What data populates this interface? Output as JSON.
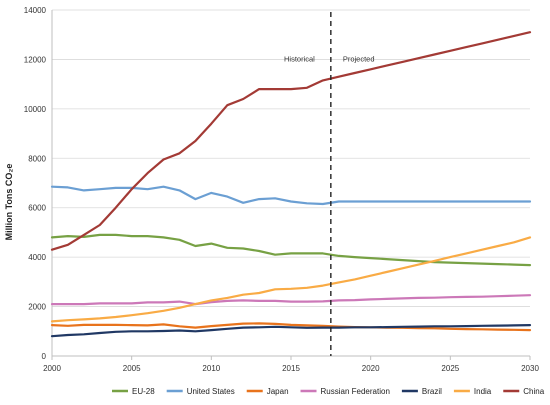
{
  "chart_data": {
    "type": "line",
    "title": "",
    "xlabel": "",
    "ylabel": "Million Tons CO₂e",
    "xlim": [
      2000,
      2030
    ],
    "ylim": [
      0,
      14000
    ],
    "x_ticks": [
      2000,
      2005,
      2010,
      2015,
      2020,
      2025,
      2030
    ],
    "y_ticks": [
      0,
      2000,
      4000,
      6000,
      8000,
      10000,
      12000,
      14000
    ],
    "y_tick_labels": [
      "0",
      "2000",
      "4000",
      "6000",
      "8000",
      "10000",
      "12000",
      "14000"
    ],
    "grid": "horizontal",
    "legend_position": "bottom",
    "divider": {
      "x": 2017.5,
      "style": "dashed",
      "left_label": "Historical",
      "right_label": "Projected"
    },
    "x": [
      2000,
      2001,
      2002,
      2003,
      2004,
      2005,
      2006,
      2007,
      2008,
      2009,
      2010,
      2011,
      2012,
      2013,
      2014,
      2015,
      2016,
      2017,
      2018,
      2019,
      2020,
      2021,
      2022,
      2023,
      2024,
      2025,
      2026,
      2027,
      2028,
      2029,
      2030
    ],
    "series": [
      {
        "name": "EU-28",
        "color": "#77a144",
        "values": [
          4800,
          4850,
          4820,
          4900,
          4900,
          4850,
          4850,
          4800,
          4700,
          4450,
          4550,
          4380,
          4350,
          4250,
          4100,
          4150,
          4150,
          4150,
          4050,
          4000,
          3960,
          3920,
          3880,
          3840,
          3800,
          3780,
          3760,
          3740,
          3720,
          3700,
          3680
        ]
      },
      {
        "name": "United States",
        "color": "#6b9fd3",
        "values": [
          6850,
          6820,
          6700,
          6750,
          6800,
          6800,
          6750,
          6850,
          6700,
          6350,
          6600,
          6450,
          6200,
          6350,
          6380,
          6250,
          6180,
          6150,
          6250,
          6250,
          6250,
          6250,
          6250,
          6250,
          6250,
          6250,
          6250,
          6250,
          6250,
          6250,
          6250
        ]
      },
      {
        "name": "Japan",
        "color": "#e8731c",
        "values": [
          1250,
          1220,
          1260,
          1260,
          1260,
          1250,
          1240,
          1280,
          1200,
          1150,
          1210,
          1260,
          1310,
          1320,
          1300,
          1260,
          1240,
          1220,
          1190,
          1170,
          1160,
          1150,
          1140,
          1130,
          1120,
          1100,
          1090,
          1080,
          1070,
          1060,
          1050
        ]
      },
      {
        "name": "Russian Federation",
        "color": "#cc78b8",
        "values": [
          2100,
          2100,
          2100,
          2130,
          2130,
          2130,
          2170,
          2170,
          2200,
          2100,
          2180,
          2230,
          2250,
          2230,
          2230,
          2200,
          2200,
          2210,
          2250,
          2260,
          2290,
          2310,
          2330,
          2350,
          2360,
          2380,
          2390,
          2400,
          2420,
          2440,
          2460
        ]
      },
      {
        "name": "Brazil",
        "color": "#203864",
        "values": [
          800,
          850,
          880,
          930,
          980,
          1000,
          1000,
          1010,
          1030,
          1000,
          1050,
          1100,
          1150,
          1160,
          1180,
          1160,
          1140,
          1150,
          1150,
          1160,
          1160,
          1170,
          1180,
          1190,
          1200,
          1200,
          1210,
          1220,
          1230,
          1240,
          1250
        ]
      },
      {
        "name": "India",
        "color": "#f9ab45",
        "values": [
          1400,
          1450,
          1480,
          1520,
          1580,
          1650,
          1730,
          1830,
          1950,
          2100,
          2250,
          2350,
          2480,
          2550,
          2700,
          2720,
          2760,
          2850,
          2980,
          3100,
          3250,
          3400,
          3550,
          3700,
          3850,
          4000,
          4150,
          4300,
          4450,
          4600,
          4800
        ]
      },
      {
        "name": "China",
        "color": "#a33a35",
        "values": [
          4300,
          4500,
          4900,
          5300,
          6000,
          6750,
          7400,
          7950,
          8200,
          8700,
          9400,
          10150,
          10400,
          10800,
          10800,
          10800,
          10850,
          11150,
          11300,
          11450,
          11600,
          11750,
          11900,
          12050,
          12200,
          12350,
          12500,
          12650,
          12800,
          12950,
          13100
        ]
      }
    ]
  }
}
